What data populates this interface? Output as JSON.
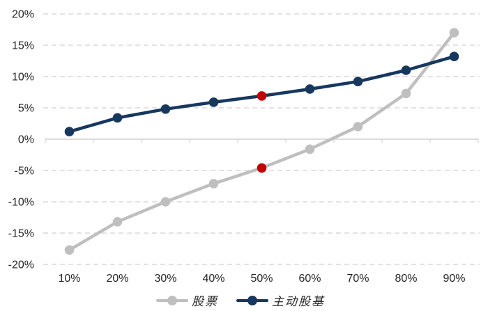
{
  "chart_data": {
    "type": "line",
    "title": "",
    "xlabel": "",
    "ylabel": "",
    "categories": [
      "10%",
      "20%",
      "30%",
      "40%",
      "50%",
      "60%",
      "70%",
      "80%",
      "90%"
    ],
    "series": [
      {
        "id": "stocks",
        "name": "股票",
        "color": "#bfbfbf",
        "values": [
          -17.7,
          -13.2,
          -10.0,
          -7.1,
          -4.6,
          -1.6,
          2.0,
          7.3,
          17.0
        ],
        "highlight_index": 4,
        "highlight_color": "#c00000"
      },
      {
        "id": "active-equity-funds",
        "name": "主动股基",
        "color": "#17375e",
        "values": [
          1.2,
          3.4,
          4.8,
          5.9,
          6.9,
          8.0,
          9.2,
          11.0,
          13.2
        ],
        "highlight_index": 4,
        "highlight_color": "#c00000"
      }
    ],
    "yticks": [
      {
        "value": 20,
        "label": "20%"
      },
      {
        "value": 15,
        "label": "15%"
      },
      {
        "value": 10,
        "label": "10%"
      },
      {
        "value": 5,
        "label": "5%"
      },
      {
        "value": 0,
        "label": "0%"
      },
      {
        "value": -5,
        "label": "-5%"
      },
      {
        "value": -10,
        "label": "-10%"
      },
      {
        "value": -15,
        "label": "-15%"
      },
      {
        "value": -20,
        "label": "-20%"
      }
    ],
    "ylim": [
      -20,
      20
    ],
    "grid": "horizontal-dashed",
    "baseline_value": 0,
    "legend_position": "bottom"
  },
  "style": {
    "background": "#ffffff",
    "gridline_color": "#d9d9d9",
    "axis_color": "#d2d2d2",
    "text_color": "#262626"
  }
}
